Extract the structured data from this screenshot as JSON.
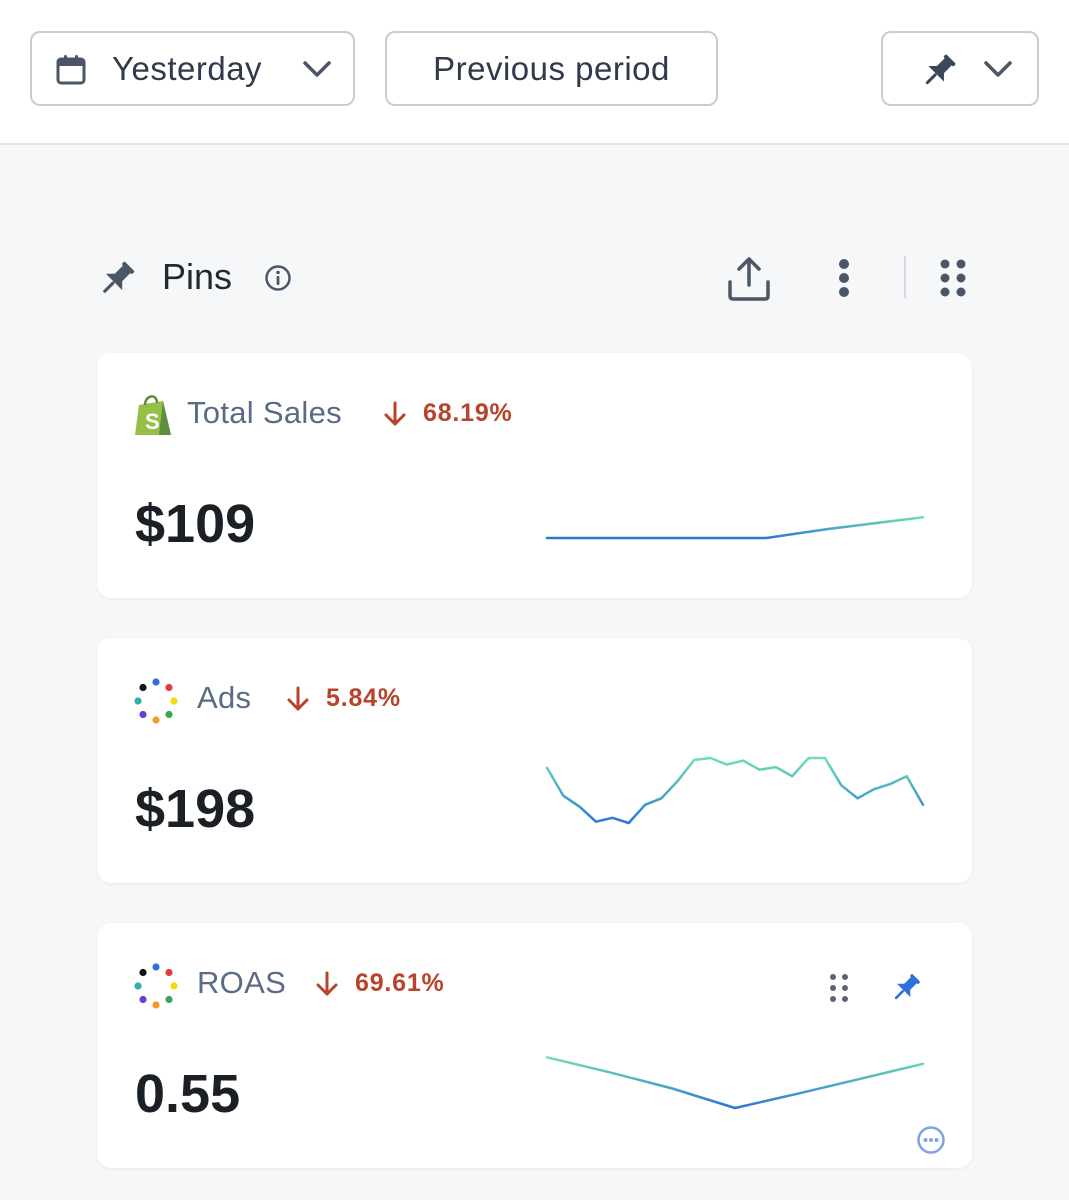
{
  "toolbar": {
    "date_range_label": "Yesterday",
    "compare_label": "Previous period"
  },
  "pins_section": {
    "title": "Pins"
  },
  "colors": {
    "accent_blue": "#2f6fe0",
    "trend_down": "#b8432b",
    "spark_start": "#2b78d4",
    "spark_end": "#6fe0b3"
  },
  "cards": [
    {
      "name": "Total Sales",
      "source_icon": "shopify-icon",
      "trend_direction": "down",
      "trend_label": "68.19%",
      "value": "$109",
      "sparkline": [
        0,
        0,
        0,
        0,
        0,
        0,
        0,
        0,
        0.07,
        0.14,
        0.2,
        0.26,
        0.32
      ]
    },
    {
      "name": "Ads",
      "source_icon": "multicolor-dots-icon",
      "trend_direction": "down",
      "trend_label": "5.84%",
      "value": "$198",
      "sparkline": [
        0.85,
        0.42,
        0.25,
        0.02,
        0.08,
        0.0,
        0.28,
        0.38,
        0.65,
        0.97,
        1.0,
        0.9,
        0.96,
        0.82,
        0.86,
        0.72,
        1.0,
        1.0,
        0.58,
        0.38,
        0.52,
        0.6,
        0.72,
        0.28
      ]
    },
    {
      "name": "ROAS",
      "source_icon": "multicolor-dots-icon",
      "trend_direction": "down",
      "trend_label": "69.61%",
      "value": "0.55",
      "sparkline": [
        0.78,
        0.55,
        0.3,
        0.0,
        0.22,
        0.45,
        0.68
      ]
    }
  ]
}
